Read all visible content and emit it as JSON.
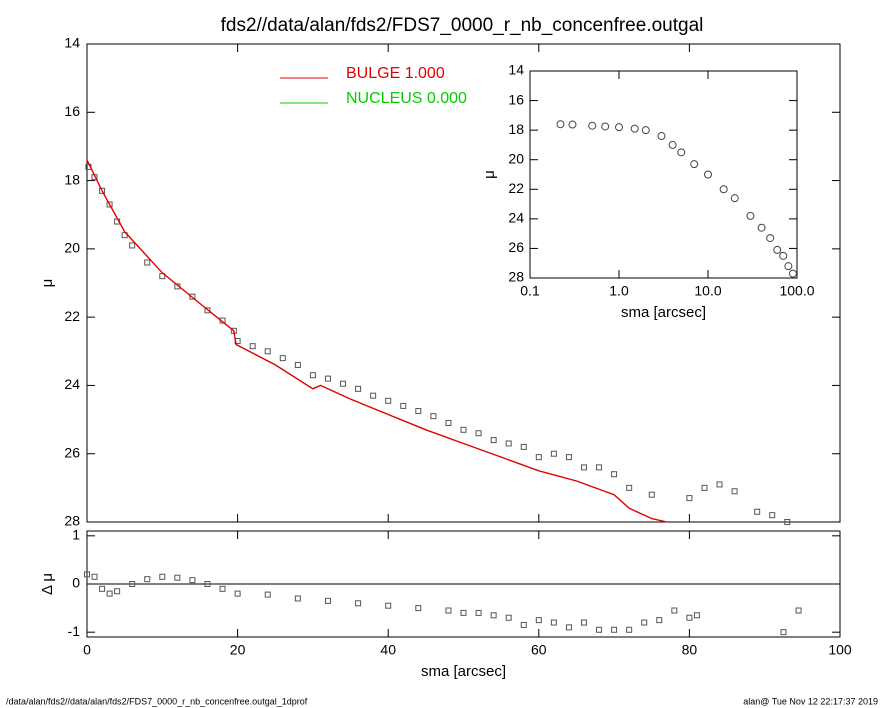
{
  "title": "fds2//data/alan/fds2/FDS7_0000_r_nb_concenfree.outgal",
  "footer": {
    "left": "/data/alan/fds2//data/alan/fds2/FDS7_0000_r_nb_concenfree.outgal_1dprof",
    "right": "alan@  Tue Nov 12 22:17:37 2019"
  },
  "chart_data": [
    {
      "type": "scatter",
      "ylabel": "μ",
      "xlim": [
        0,
        100
      ],
      "xticks": [
        0,
        20,
        40,
        60,
        80,
        100
      ],
      "ylim": [
        14,
        28
      ],
      "y_reversed": true,
      "yticks": [
        14,
        16,
        18,
        20,
        22,
        24,
        26,
        28
      ],
      "series": [
        {
          "style": "markers",
          "marker": "square",
          "color": "#555555",
          "x": [
            0.2,
            1,
            2,
            3,
            4,
            5,
            6,
            8,
            10,
            12,
            14,
            16,
            18,
            19.5,
            20,
            22,
            24,
            26,
            28,
            30,
            32,
            34,
            36,
            38,
            40,
            42,
            44,
            46,
            48,
            50,
            52,
            54,
            56,
            58,
            60,
            62,
            64,
            66,
            68,
            70,
            72,
            75,
            80,
            82,
            84,
            86,
            89,
            91,
            93
          ],
          "values": [
            17.6,
            17.9,
            18.3,
            18.7,
            19.2,
            19.6,
            19.9,
            20.4,
            20.8,
            21.1,
            21.4,
            21.8,
            22.1,
            22.4,
            22.7,
            22.85,
            23.0,
            23.2,
            23.4,
            23.7,
            23.8,
            23.95,
            24.1,
            24.3,
            24.45,
            24.6,
            24.75,
            24.9,
            25.1,
            25.3,
            25.4,
            25.6,
            25.7,
            25.8,
            26.1,
            26.0,
            26.1,
            26.4,
            26.4,
            26.6,
            27.0,
            27.2,
            27.3,
            27.0,
            26.9,
            27.1,
            27.7,
            27.8,
            28.0
          ]
        },
        {
          "style": "line",
          "name": "BULGE  1.000",
          "color": "#e00000",
          "x": [
            0,
            2,
            5,
            10,
            15,
            19.5,
            19.8,
            25,
            30,
            31,
            35,
            40,
            45,
            50,
            55,
            60,
            65,
            70,
            72,
            75,
            77
          ],
          "values": [
            17.4,
            18.3,
            19.5,
            20.7,
            21.6,
            22.4,
            22.8,
            23.4,
            24.1,
            24.0,
            24.4,
            24.85,
            25.3,
            25.7,
            26.1,
            26.5,
            26.8,
            27.2,
            27.6,
            27.9,
            28.0
          ]
        },
        {
          "style": "line",
          "name": "NUCLEUS  0.000",
          "color": "#00d000",
          "x": [],
          "values": []
        }
      ]
    },
    {
      "type": "scatter",
      "xlabel": "sma [arcsec]",
      "ylabel": "Δ μ",
      "xlim": [
        0,
        100
      ],
      "xticks": [
        0,
        20,
        40,
        60,
        80,
        100
      ],
      "ylim": [
        -1.1,
        1.1
      ],
      "yticks": [
        -1,
        0,
        1
      ],
      "reference_line": 0,
      "series": [
        {
          "style": "markers",
          "marker": "square",
          "color": "#555555",
          "x": [
            0,
            1,
            2,
            3,
            4,
            6,
            8,
            10,
            12,
            14,
            16,
            18,
            20,
            24,
            28,
            32,
            36,
            40,
            44,
            48,
            50,
            52,
            54,
            56,
            58,
            60,
            62,
            64,
            66,
            68,
            70,
            72,
            74,
            76,
            78,
            80,
            81,
            92.5,
            94.5
          ],
          "values": [
            0.2,
            0.15,
            -0.1,
            -0.2,
            -0.15,
            0.0,
            0.1,
            0.15,
            0.13,
            0.08,
            0.0,
            -0.1,
            -0.2,
            -0.22,
            -0.3,
            -0.35,
            -0.4,
            -0.45,
            -0.5,
            -0.55,
            -0.6,
            -0.6,
            -0.65,
            -0.7,
            -0.85,
            -0.75,
            -0.8,
            -0.9,
            -0.8,
            -0.95,
            -0.95,
            -0.95,
            -0.8,
            -0.75,
            -0.55,
            -0.7,
            -0.65,
            -1.0,
            -0.55
          ]
        }
      ]
    },
    {
      "type": "scatter",
      "xlabel": "sma [arcsec]",
      "ylabel": "μ",
      "xlog": true,
      "xlim": [
        0.1,
        100
      ],
      "xticks": [
        0.1,
        {
          "value": 1,
          "label": "1.0"
        },
        {
          "value": 10,
          "label": "10.0"
        },
        {
          "value": 100,
          "label": "100.0"
        }
      ],
      "ylim": [
        14,
        28
      ],
      "y_reversed": true,
      "yticks": [
        14,
        16,
        18,
        20,
        22,
        24,
        26,
        28
      ],
      "series": [
        {
          "style": "markers",
          "marker": "circle",
          "color": "#444444",
          "x": [
            0.22,
            0.3,
            0.5,
            0.7,
            1,
            1.5,
            2,
            3,
            4,
            5,
            7,
            10,
            15,
            20,
            30,
            40,
            50,
            60,
            70,
            80,
            90
          ],
          "values": [
            17.6,
            17.62,
            17.7,
            17.75,
            17.8,
            17.9,
            18.0,
            18.4,
            19.0,
            19.5,
            20.3,
            21.0,
            22.0,
            22.6,
            23.8,
            24.6,
            25.3,
            26.1,
            26.5,
            27.2,
            27.7
          ]
        }
      ]
    }
  ]
}
